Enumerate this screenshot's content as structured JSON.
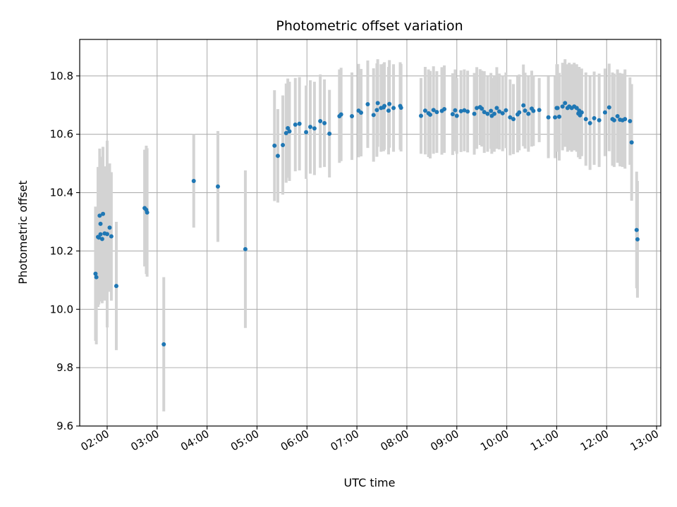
{
  "chart_data": {
    "type": "scatter",
    "title": "Photometric offset variation",
    "xlabel": "UTC time",
    "ylabel": "Photometric offset",
    "grid": true,
    "xlim": [
      "01:27",
      "13:05"
    ],
    "ylim": [
      9.6,
      10.925
    ],
    "xticks": [
      "02:00",
      "03:00",
      "04:00",
      "05:00",
      "06:00",
      "07:00",
      "08:00",
      "09:00",
      "10:00",
      "11:00",
      "12:00",
      "13:00"
    ],
    "yticks": [
      "9.6",
      "9.8",
      "10.0",
      "10.2",
      "10.4",
      "10.6",
      "10.8"
    ],
    "marker_color": "#1f77b4",
    "errorbar_color": "#d3d3d3",
    "series": [
      {
        "x": [
          "01:46",
          "01:47",
          "01:49",
          "01:50",
          "01:51",
          "01:52",
          "01:52",
          "01:54",
          "01:55",
          "01:57",
          "02:00",
          "02:03",
          "02:05",
          "02:11",
          "02:45",
          "02:47",
          "02:48",
          "03:08",
          "03:44",
          "04:13",
          "04:46",
          "05:21",
          "05:25",
          "05:31",
          "05:35",
          "05:37",
          "05:39",
          "05:46",
          "05:51",
          "05:59",
          "06:04",
          "06:09",
          "06:16",
          "06:21",
          "06:27",
          "06:39",
          "06:41",
          "06:54",
          "07:02",
          "07:05",
          "07:13",
          "07:20",
          "07:24",
          "07:25",
          "07:29",
          "07:32",
          "07:33",
          "07:38",
          "07:39",
          "07:44",
          "07:52",
          "07:53",
          "08:17",
          "08:22",
          "08:26",
          "08:28",
          "08:32",
          "08:36",
          "08:42",
          "08:45",
          "08:55",
          "08:58",
          "09:00",
          "09:05",
          "09:09",
          "09:13",
          "09:21",
          "09:24",
          "09:28",
          "09:30",
          "09:33",
          "09:37",
          "09:41",
          "09:42",
          "09:45",
          "09:48",
          "09:51",
          "09:55",
          "09:59",
          "10:04",
          "10:08",
          "10:13",
          "10:15",
          "10:20",
          "10:22",
          "10:26",
          "10:30",
          "10:32",
          "10:39",
          "10:50",
          "10:58",
          "11:00",
          "11:01",
          "11:03",
          "11:07",
          "11:10",
          "11:13",
          "11:15",
          "11:18",
          "11:21",
          "11:24",
          "11:26",
          "11:27",
          "11:28",
          "11:30",
          "11:35",
          "11:40",
          "11:45",
          "11:51",
          "11:58",
          "12:03",
          "12:07",
          "12:09",
          "12:13",
          "12:16",
          "12:19",
          "12:22",
          "12:28",
          "12:30",
          "12:36",
          "12:37"
        ],
        "y": [
          10.122,
          10.11,
          10.248,
          10.246,
          10.321,
          10.293,
          10.257,
          10.241,
          10.327,
          10.26,
          10.258,
          10.28,
          10.25,
          10.08,
          10.347,
          10.341,
          10.332,
          9.88,
          10.44,
          10.421,
          10.206,
          10.561,
          10.526,
          10.563,
          10.604,
          10.621,
          10.61,
          10.633,
          10.636,
          10.607,
          10.625,
          10.62,
          10.645,
          10.638,
          10.602,
          10.662,
          10.668,
          10.662,
          10.681,
          10.674,
          10.703,
          10.666,
          10.683,
          10.707,
          10.69,
          10.692,
          10.697,
          10.681,
          10.704,
          10.69,
          10.697,
          10.691,
          10.663,
          10.681,
          10.672,
          10.667,
          10.683,
          10.676,
          10.68,
          10.686,
          10.669,
          10.682,
          10.663,
          10.679,
          10.682,
          10.678,
          10.67,
          10.69,
          10.693,
          10.688,
          10.676,
          10.67,
          10.68,
          10.663,
          10.67,
          10.69,
          10.678,
          10.672,
          10.682,
          10.658,
          10.652,
          10.668,
          10.675,
          10.699,
          10.681,
          10.67,
          10.688,
          10.68,
          10.683,
          10.658,
          10.658,
          10.69,
          10.69,
          10.66,
          10.695,
          10.707,
          10.69,
          10.695,
          10.69,
          10.695,
          10.69,
          10.671,
          10.681,
          10.665,
          10.675,
          10.652,
          10.638,
          10.655,
          10.648,
          10.675,
          10.692,
          10.652,
          10.648,
          10.662,
          10.65,
          10.648,
          10.652,
          10.645,
          10.572,
          10.272,
          10.24
        ],
        "yerr": [
          0.23,
          0.23,
          0.24,
          0.23,
          0.23,
          0.23,
          0.23,
          0.22,
          0.23,
          0.23,
          0.32,
          0.22,
          0.22,
          0.22,
          0.2,
          0.22,
          0.22,
          0.23,
          0.16,
          0.19,
          0.27,
          0.19,
          0.16,
          0.17,
          0.17,
          0.17,
          0.17,
          0.16,
          0.16,
          0.16,
          0.16,
          0.16,
          0.16,
          0.15,
          0.15,
          0.16,
          0.16,
          0.15,
          0.16,
          0.15,
          0.15,
          0.16,
          0.16,
          0.15,
          0.15,
          0.15,
          0.15,
          0.15,
          0.15,
          0.15,
          0.15,
          0.15,
          0.13,
          0.15,
          0.15,
          0.15,
          0.15,
          0.14,
          0.15,
          0.15,
          0.14,
          0.14,
          0.13,
          0.14,
          0.14,
          0.14,
          0.14,
          0.14,
          0.13,
          0.13,
          0.14,
          0.13,
          0.13,
          0.13,
          0.13,
          0.14,
          0.13,
          0.13,
          0.13,
          0.13,
          0.12,
          0.13,
          0.13,
          0.14,
          0.13,
          0.13,
          0.13,
          0.12,
          0.11,
          0.14,
          0.14,
          0.15,
          0.15,
          0.15,
          0.15,
          0.15,
          0.15,
          0.15,
          0.15,
          0.15,
          0.15,
          0.15,
          0.15,
          0.15,
          0.15,
          0.16,
          0.16,
          0.16,
          0.16,
          0.15,
          0.15,
          0.16,
          0.16,
          0.16,
          0.16,
          0.16,
          0.17,
          0.15,
          0.2,
          0.2,
          0.2
        ]
      }
    ]
  }
}
